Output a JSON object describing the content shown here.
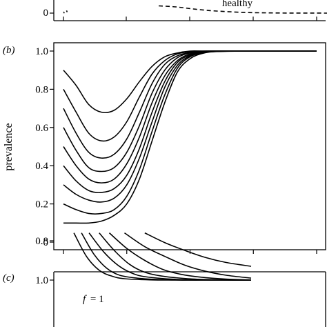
{
  "chart_data": [
    {
      "panel": "a",
      "type": "line",
      "annotations": [
        "healthy"
      ],
      "yticks": [
        "0"
      ],
      "series": [
        {
          "style": "dashed",
          "x": [
            0,
            0.05,
            0.1,
            0.15,
            0.2,
            0.25,
            0.3,
            0.35,
            0.4,
            0.45,
            0.5
          ],
          "y": [
            0.35,
            0.3,
            0.2,
            0.12,
            0.07,
            0.03,
            0.015,
            0.005,
            0.002,
            0.001,
            0
          ]
        },
        {
          "style": "dotted",
          "x": [
            0,
            0.01,
            0.02
          ],
          "y": [
            0.02,
            0.06,
            0.1
          ]
        }
      ]
    },
    {
      "panel": "b",
      "type": "line",
      "label": "(b)",
      "ylabel": "prevalence",
      "ylim": [
        0,
        1.0
      ],
      "yticks": [
        "0",
        "0.2",
        "0.4",
        "0.6",
        "0.8",
        "1.0"
      ],
      "xlim": [
        0,
        1
      ],
      "series": [
        {
          "x": [
            0,
            0.05,
            0.1,
            0.15,
            0.2,
            0.25,
            0.3,
            0.35,
            0.4,
            0.45,
            0.5,
            0.55,
            0.6,
            0.7,
            0.8,
            1.0
          ],
          "y": [
            0.9,
            0.82,
            0.72,
            0.68,
            0.69,
            0.75,
            0.84,
            0.92,
            0.97,
            0.99,
            1.0,
            1.0,
            1.0,
            1.0,
            1.0,
            1.0
          ]
        },
        {
          "x": [
            0,
            0.05,
            0.1,
            0.15,
            0.2,
            0.25,
            0.3,
            0.35,
            0.4,
            0.45,
            0.5,
            0.55,
            0.6,
            0.7,
            0.8,
            1.0
          ],
          "y": [
            0.8,
            0.68,
            0.57,
            0.53,
            0.55,
            0.63,
            0.76,
            0.88,
            0.95,
            0.985,
            0.997,
            1.0,
            1.0,
            1.0,
            1.0,
            1.0
          ]
        },
        {
          "x": [
            0,
            0.05,
            0.1,
            0.15,
            0.2,
            0.25,
            0.3,
            0.35,
            0.4,
            0.45,
            0.5,
            0.55,
            0.6,
            0.7,
            0.8,
            1.0
          ],
          "y": [
            0.7,
            0.57,
            0.47,
            0.44,
            0.46,
            0.54,
            0.68,
            0.83,
            0.93,
            0.975,
            0.993,
            0.999,
            1.0,
            1.0,
            1.0,
            1.0
          ]
        },
        {
          "x": [
            0,
            0.05,
            0.1,
            0.15,
            0.2,
            0.25,
            0.3,
            0.35,
            0.4,
            0.45,
            0.5,
            0.55,
            0.6,
            0.7,
            0.8,
            1.0
          ],
          "y": [
            0.6,
            0.48,
            0.39,
            0.37,
            0.39,
            0.47,
            0.61,
            0.78,
            0.9,
            0.965,
            0.99,
            0.998,
            1.0,
            1.0,
            1.0,
            1.0
          ]
        },
        {
          "x": [
            0,
            0.05,
            0.1,
            0.15,
            0.2,
            0.25,
            0.3,
            0.35,
            0.4,
            0.45,
            0.5,
            0.55,
            0.6,
            0.7,
            0.8,
            1.0
          ],
          "y": [
            0.5,
            0.4,
            0.33,
            0.31,
            0.33,
            0.41,
            0.55,
            0.73,
            0.87,
            0.95,
            0.985,
            0.996,
            1.0,
            1.0,
            1.0,
            1.0
          ]
        },
        {
          "x": [
            0,
            0.05,
            0.1,
            0.15,
            0.2,
            0.25,
            0.3,
            0.35,
            0.4,
            0.45,
            0.5,
            0.55,
            0.6,
            0.7,
            0.8,
            1.0
          ],
          "y": [
            0.4,
            0.32,
            0.27,
            0.26,
            0.28,
            0.35,
            0.49,
            0.68,
            0.84,
            0.94,
            0.98,
            0.995,
            1.0,
            1.0,
            1.0,
            1.0
          ]
        },
        {
          "x": [
            0,
            0.05,
            0.1,
            0.15,
            0.2,
            0.25,
            0.3,
            0.35,
            0.4,
            0.45,
            0.5,
            0.55,
            0.6,
            0.7,
            0.8,
            1.0
          ],
          "y": [
            0.3,
            0.25,
            0.22,
            0.21,
            0.23,
            0.3,
            0.44,
            0.63,
            0.81,
            0.925,
            0.975,
            0.993,
            0.999,
            1.0,
            1.0,
            1.0
          ]
        },
        {
          "x": [
            0,
            0.05,
            0.1,
            0.15,
            0.2,
            0.25,
            0.3,
            0.35,
            0.4,
            0.45,
            0.5,
            0.55,
            0.6,
            0.7,
            0.8,
            1.0
          ],
          "y": [
            0.2,
            0.17,
            0.15,
            0.15,
            0.17,
            0.24,
            0.38,
            0.58,
            0.77,
            0.91,
            0.97,
            0.991,
            0.998,
            1.0,
            1.0,
            1.0
          ]
        },
        {
          "x": [
            0,
            0.05,
            0.1,
            0.15,
            0.2,
            0.25,
            0.3,
            0.35,
            0.4,
            0.45,
            0.5,
            0.55,
            0.6,
            0.7,
            0.8,
            1.0
          ],
          "y": [
            0.1,
            0.1,
            0.1,
            0.11,
            0.14,
            0.2,
            0.33,
            0.53,
            0.73,
            0.89,
            0.96,
            0.988,
            0.997,
            1.0,
            1.0,
            1.0
          ]
        }
      ]
    },
    {
      "panel": "c",
      "type": "line",
      "label": "(c)",
      "annotations": [
        "f",
        "= 1"
      ],
      "ylim": [
        0.76,
        1.0
      ],
      "yticks": [
        "0.8",
        "1.0"
      ],
      "xlim": [
        0,
        1
      ],
      "series": [
        {
          "x": [
            0.3,
            0.35,
            0.4,
            0.45,
            0.5,
            0.6,
            0.7,
            0.8,
            1.0
          ],
          "y": [
            0.76,
            0.88,
            0.95,
            0.98,
            0.993,
            0.999,
            1.0,
            1.0,
            1.0
          ]
        },
        {
          "x": [
            0.33,
            0.38,
            0.43,
            0.48,
            0.55,
            0.65,
            0.75,
            0.85,
            1.0
          ],
          "y": [
            0.76,
            0.87,
            0.94,
            0.975,
            0.99,
            0.998,
            1.0,
            1.0,
            1.0
          ]
        },
        {
          "x": [
            0.36,
            0.42,
            0.48,
            0.54,
            0.6,
            0.7,
            0.8,
            0.9,
            1.0
          ],
          "y": [
            0.76,
            0.86,
            0.93,
            0.97,
            0.986,
            0.996,
            0.999,
            1.0,
            1.0
          ]
        },
        {
          "x": [
            0.4,
            0.46,
            0.52,
            0.58,
            0.65,
            0.75,
            0.85,
            0.95,
            1.0
          ],
          "y": [
            0.76,
            0.85,
            0.92,
            0.96,
            0.98,
            0.993,
            0.998,
            1.0,
            1.0
          ]
        },
        {
          "x": [
            0.44,
            0.51,
            0.58,
            0.65,
            0.72,
            0.8,
            0.9,
            1.0
          ],
          "y": [
            0.76,
            0.84,
            0.9,
            0.945,
            0.97,
            0.985,
            0.995,
            0.999
          ]
        },
        {
          "x": [
            0.5,
            0.58,
            0.66,
            0.74,
            0.82,
            0.9,
            1.0
          ],
          "y": [
            0.76,
            0.83,
            0.88,
            0.925,
            0.955,
            0.975,
            0.99
          ]
        },
        {
          "x": [
            0.58,
            0.66,
            0.74,
            0.82,
            0.9,
            1.0
          ],
          "y": [
            0.76,
            0.81,
            0.85,
            0.885,
            0.91,
            0.93
          ]
        }
      ]
    }
  ]
}
